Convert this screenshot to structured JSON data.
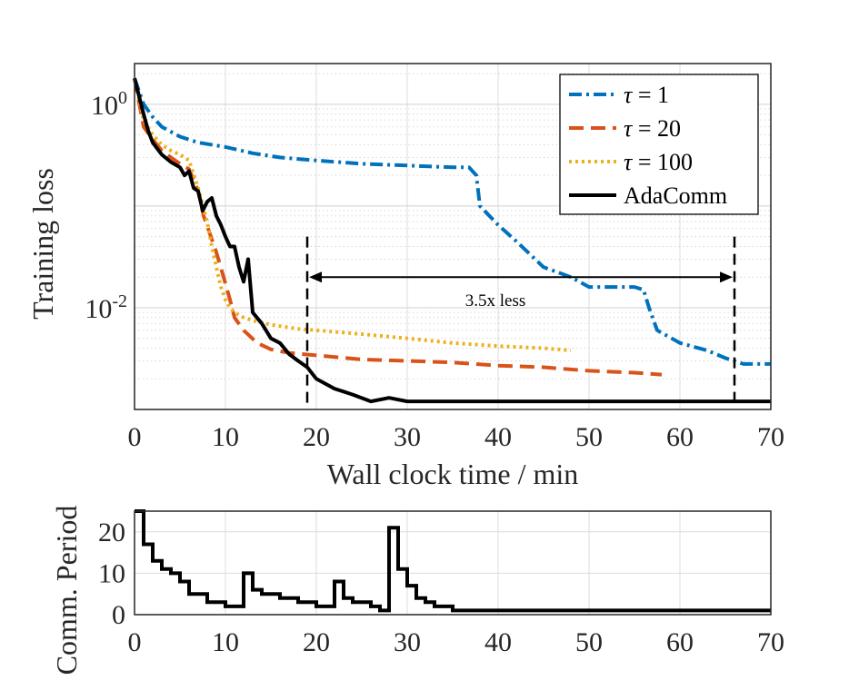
{
  "chart_data": [
    {
      "type": "line",
      "x_scale": "linear",
      "y_scale": "log",
      "xlabel": "Wall clock time / min",
      "ylabel": "Training loss",
      "xlim": [
        0,
        70
      ],
      "ylim_exponents": [
        -3.0,
        0.4
      ],
      "xticks": [
        "0",
        "10",
        "20",
        "30",
        "40",
        "50",
        "60",
        "70"
      ],
      "yticks": [
        {
          "base": "10",
          "exp": "0",
          "value_exp": 0
        },
        {
          "base": "10",
          "exp": "-2",
          "value_exp": -2
        }
      ],
      "grid": true,
      "legend_position": "top-right",
      "series": [
        {
          "name": "τ = 1",
          "legend_symbol": "τ",
          "legend_rest": " = 1",
          "color": "#0072BD",
          "style": "dashdot",
          "x": [
            0,
            1,
            2,
            3,
            5,
            7,
            10,
            13,
            16,
            20,
            25,
            30,
            35,
            36.8,
            37.6,
            38,
            40,
            42,
            45,
            48,
            50,
            53,
            55,
            56,
            56.6,
            57.5,
            60,
            63,
            65,
            67,
            70
          ],
          "y": [
            1.8,
            1.0,
            0.75,
            0.6,
            0.48,
            0.42,
            0.38,
            0.33,
            0.3,
            0.28,
            0.26,
            0.25,
            0.24,
            0.24,
            0.2,
            0.1,
            0.065,
            0.045,
            0.025,
            0.02,
            0.016,
            0.016,
            0.016,
            0.015,
            0.01,
            0.006,
            0.0045,
            0.0038,
            0.0032,
            0.0028,
            0.0028
          ]
        },
        {
          "name": "τ = 20",
          "legend_symbol": "τ",
          "legend_rest": " = 20",
          "color": "#D95319",
          "style": "dashed",
          "x": [
            0,
            1,
            2,
            3,
            4,
            5,
            6,
            7,
            7.6,
            8.4,
            9,
            9.8,
            10.5,
            11,
            12,
            13.5,
            15,
            17,
            20,
            25,
            30,
            35,
            40,
            45,
            50,
            55,
            58
          ],
          "y": [
            1.8,
            0.6,
            0.45,
            0.35,
            0.3,
            0.26,
            0.23,
            0.14,
            0.08,
            0.05,
            0.035,
            0.02,
            0.012,
            0.008,
            0.006,
            0.0045,
            0.0039,
            0.0036,
            0.0034,
            0.0031,
            0.003,
            0.0029,
            0.0027,
            0.0026,
            0.0024,
            0.0023,
            0.0022
          ]
        },
        {
          "name": "τ = 100",
          "legend_symbol": "τ",
          "legend_rest": " = 100",
          "color": "#EDB120",
          "style": "dotted",
          "x": [
            0,
            1,
            2,
            3,
            4,
            5,
            6,
            7,
            8,
            8.5,
            9,
            9.5,
            10,
            10.5,
            11,
            12,
            13,
            15,
            18,
            20,
            25,
            30,
            35,
            40,
            45,
            48
          ],
          "y": [
            1.8,
            0.7,
            0.5,
            0.4,
            0.35,
            0.32,
            0.28,
            0.15,
            0.07,
            0.04,
            0.025,
            0.016,
            0.012,
            0.01,
            0.009,
            0.008,
            0.0075,
            0.0068,
            0.0062,
            0.006,
            0.0055,
            0.005,
            0.0045,
            0.0042,
            0.004,
            0.0038
          ]
        },
        {
          "name": "AdaComm",
          "legend_symbol": "",
          "legend_rest": "AdaComm",
          "color": "#000000",
          "style": "solid",
          "x": [
            0,
            0.5,
            1,
            1.5,
            2,
            3,
            4,
            5,
            5.5,
            6,
            6.5,
            7,
            7.5,
            8,
            8.5,
            9,
            9.5,
            10,
            10.5,
            11,
            11.5,
            12,
            12.5,
            13,
            14,
            15,
            16,
            17,
            18,
            19,
            20,
            22,
            24,
            26,
            28,
            30,
            35,
            40,
            45,
            50,
            55,
            60,
            65,
            70
          ],
          "y": [
            1.8,
            1.2,
            0.8,
            0.55,
            0.42,
            0.32,
            0.27,
            0.24,
            0.2,
            0.22,
            0.15,
            0.14,
            0.09,
            0.11,
            0.12,
            0.08,
            0.065,
            0.05,
            0.04,
            0.04,
            0.025,
            0.018,
            0.03,
            0.009,
            0.007,
            0.005,
            0.0045,
            0.0035,
            0.003,
            0.0026,
            0.002,
            0.0016,
            0.0014,
            0.0012,
            0.0013,
            0.0012,
            0.0012,
            0.0012,
            0.0012,
            0.0012,
            0.0012,
            0.0012,
            0.0012,
            0.0012
          ]
        }
      ],
      "annotations": [
        {
          "text": "3.5x less",
          "arrow_x_start": 19,
          "arrow_x_end": 66,
          "arrow_y": 0.02,
          "dashed_lines_x": [
            19,
            66
          ]
        }
      ]
    },
    {
      "type": "line",
      "xlabel": "",
      "ylabel": "Comm. Period",
      "xlim": [
        0,
        70
      ],
      "ylim": [
        0,
        25
      ],
      "xticks": [
        "0",
        "10",
        "20",
        "30",
        "40",
        "50",
        "60",
        "70"
      ],
      "yticks": [
        "0",
        "10",
        "20"
      ],
      "grid": true,
      "series": [
        {
          "name": "Comm. Period",
          "color": "#000000",
          "style": "step",
          "x": [
            0,
            1,
            2,
            3,
            4,
            5,
            6,
            8,
            10,
            12,
            13,
            14,
            16,
            18,
            20,
            22,
            23,
            24,
            26,
            27,
            28,
            29,
            30,
            31,
            32,
            33,
            35,
            70
          ],
          "y": [
            25,
            17,
            13,
            11,
            10,
            8,
            5,
            3,
            2,
            10,
            6,
            5,
            4,
            3,
            2,
            8,
            4,
            3,
            2,
            1,
            21,
            11,
            7,
            4,
            3,
            2,
            1,
            1
          ]
        }
      ]
    }
  ]
}
